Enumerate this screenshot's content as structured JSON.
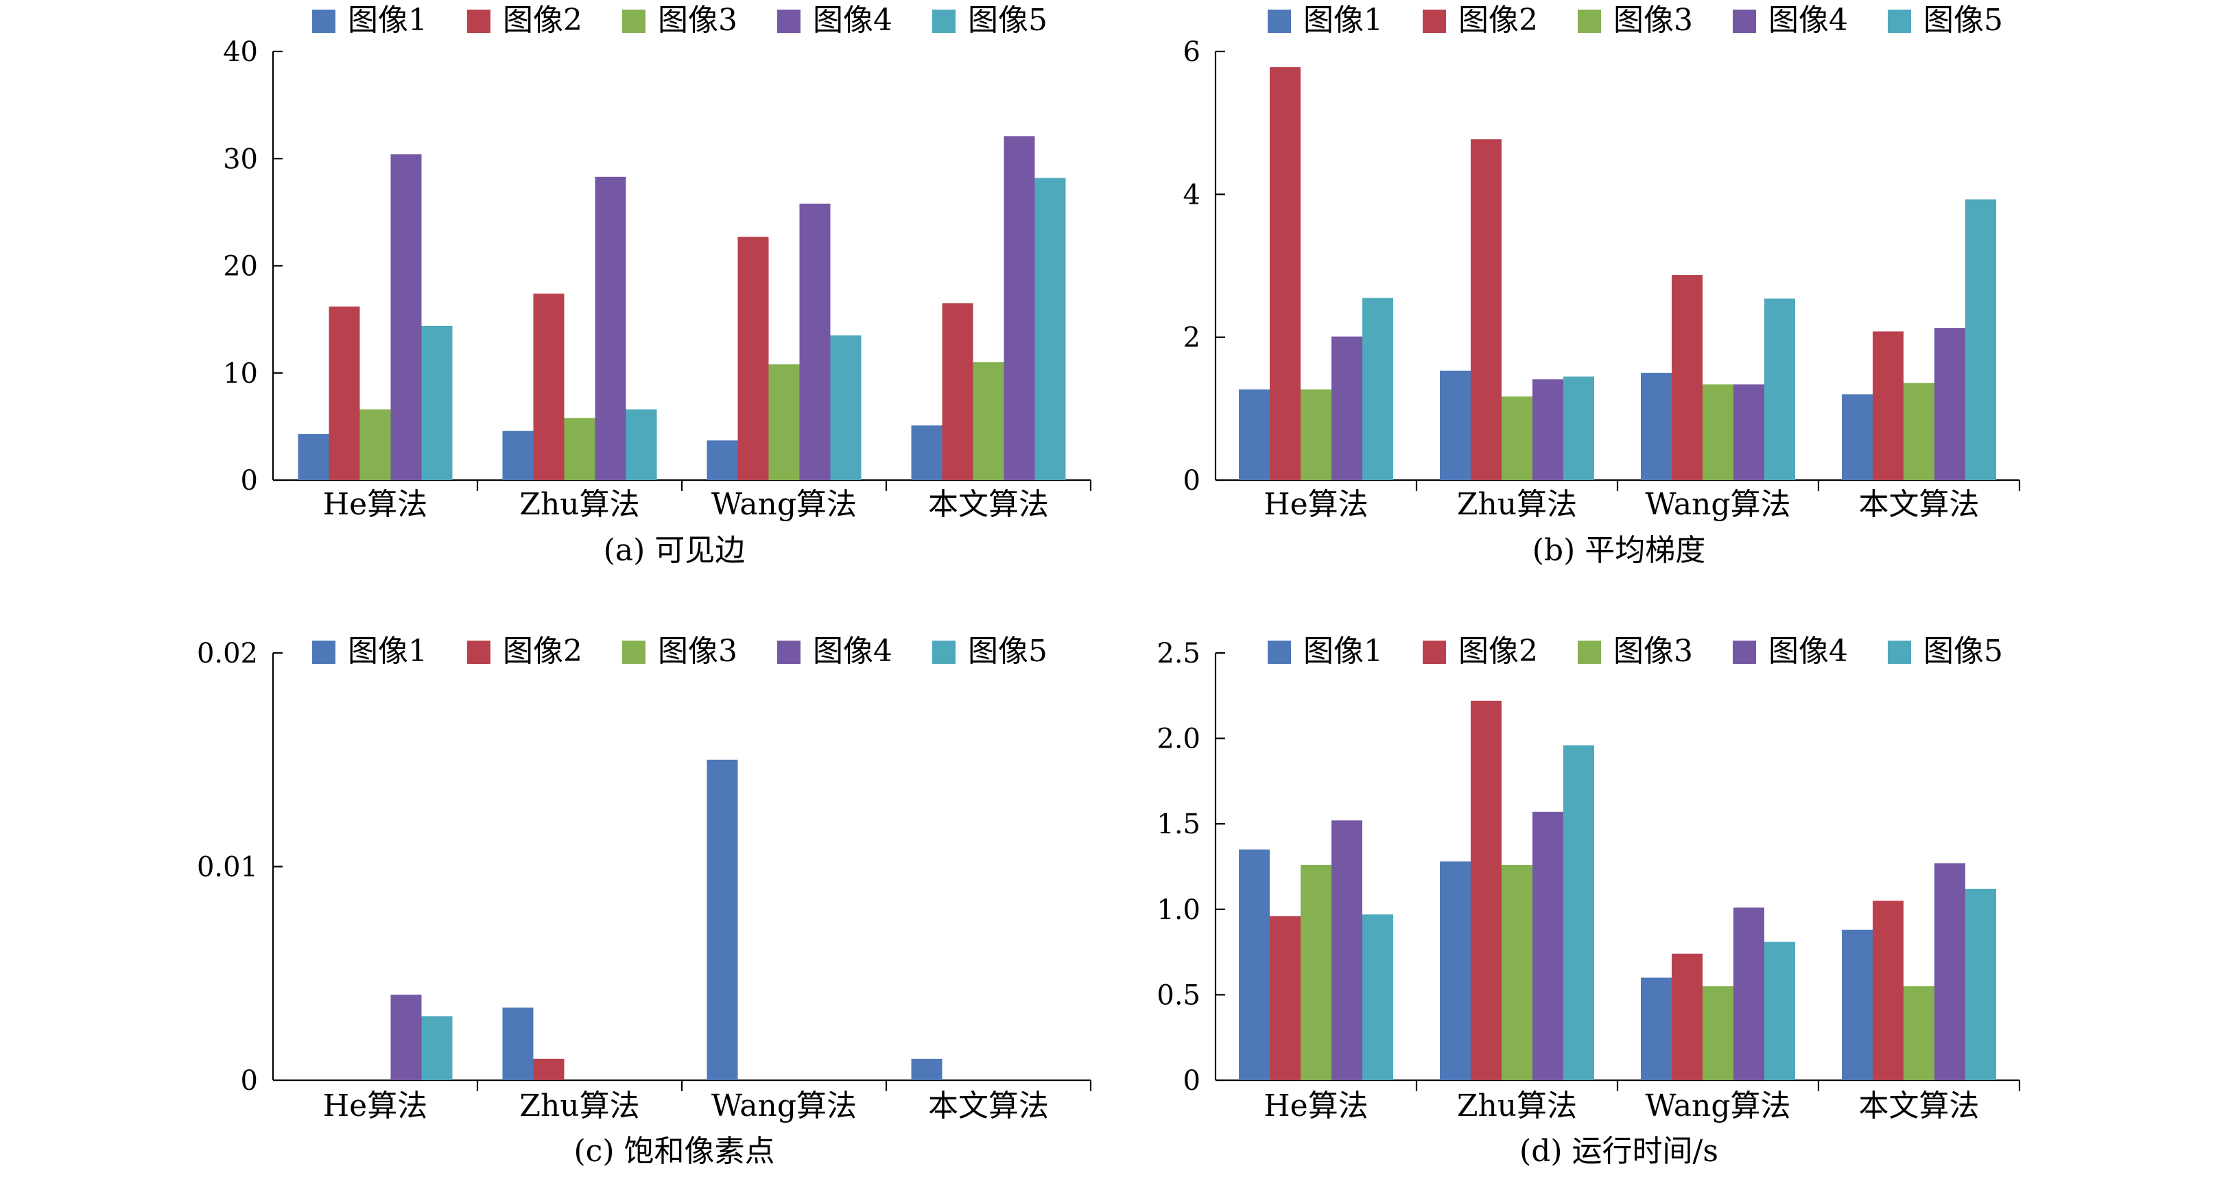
{
  "colors": {
    "series": [
      "#4f78b8",
      "#b8414d",
      "#86b150",
      "#7558a3",
      "#4fa9bd"
    ]
  },
  "chart_data": [
    {
      "type": "bar",
      "caption": "(a) 可见边",
      "categories": [
        "He算法",
        "Zhu算法",
        "Wang算法",
        "本文算法"
      ],
      "series": [
        {
          "name": "图像1",
          "values": [
            4.3,
            4.6,
            3.7,
            5.1
          ]
        },
        {
          "name": "图像2",
          "values": [
            16.2,
            17.4,
            22.7,
            16.5
          ]
        },
        {
          "name": "图像3",
          "values": [
            6.6,
            5.8,
            10.8,
            11.0
          ]
        },
        {
          "name": "图像4",
          "values": [
            30.4,
            28.3,
            25.8,
            32.1
          ]
        },
        {
          "name": "图像5",
          "values": [
            14.4,
            6.6,
            13.5,
            28.2
          ]
        }
      ],
      "ylim": [
        0,
        40
      ],
      "yticks": [
        0,
        10,
        20,
        30,
        40
      ],
      "ytick_labels": [
        "0",
        "10",
        "20",
        "30",
        "40"
      ],
      "legend": "top"
    },
    {
      "type": "bar",
      "caption": "(b) 平均梯度",
      "categories": [
        "He算法",
        "Zhu算法",
        "Wang算法",
        "本文算法"
      ],
      "series": [
        {
          "name": "图像1",
          "values": [
            1.27,
            1.53,
            1.5,
            1.2
          ]
        },
        {
          "name": "图像2",
          "values": [
            5.78,
            4.77,
            2.87,
            2.08
          ]
        },
        {
          "name": "图像3",
          "values": [
            1.27,
            1.17,
            1.34,
            1.36
          ]
        },
        {
          "name": "图像4",
          "values": [
            2.01,
            1.41,
            1.34,
            2.13
          ]
        },
        {
          "name": "图像5",
          "values": [
            2.55,
            1.45,
            2.54,
            3.93
          ]
        }
      ],
      "ylim": [
        0,
        6
      ],
      "yticks": [
        0,
        2,
        4,
        6
      ],
      "ytick_labels": [
        "0",
        "2",
        "4",
        "6"
      ],
      "legend": "top"
    },
    {
      "type": "bar",
      "caption": "(c) 饱和像素点",
      "categories": [
        "He算法",
        "Zhu算法",
        "Wang算法",
        "本文算法"
      ],
      "series": [
        {
          "name": "图像1",
          "values": [
            0,
            0.0034,
            0.015,
            0.001
          ]
        },
        {
          "name": "图像2",
          "values": [
            0,
            0.001,
            0,
            0
          ]
        },
        {
          "name": "图像3",
          "values": [
            0,
            0,
            0,
            0
          ]
        },
        {
          "name": "图像4",
          "values": [
            0.004,
            0,
            0,
            0
          ]
        },
        {
          "name": "图像5",
          "values": [
            0.003,
            0,
            0,
            0
          ]
        }
      ],
      "ylim": [
        0,
        0.02
      ],
      "yticks": [
        0,
        0.01,
        0.02
      ],
      "ytick_labels": [
        "0",
        "0.01",
        "0.02"
      ],
      "legend": "top"
    },
    {
      "type": "bar",
      "caption": "(d) 运行时间/s",
      "categories": [
        "He算法",
        "Zhu算法",
        "Wang算法",
        "本文算法"
      ],
      "series": [
        {
          "name": "图像1",
          "values": [
            1.35,
            1.28,
            0.6,
            0.88
          ]
        },
        {
          "name": "图像2",
          "values": [
            0.96,
            2.22,
            0.74,
            1.05
          ]
        },
        {
          "name": "图像3",
          "values": [
            1.26,
            1.26,
            0.55,
            0.55
          ]
        },
        {
          "name": "图像4",
          "values": [
            1.52,
            1.57,
            1.01,
            1.27
          ]
        },
        {
          "name": "图像5",
          "values": [
            0.97,
            1.96,
            0.81,
            1.12
          ]
        }
      ],
      "ylim": [
        0,
        2.5
      ],
      "yticks": [
        0,
        0.5,
        1.0,
        1.5,
        2.0,
        2.5
      ],
      "ytick_labels": [
        "0",
        "0.5",
        "1.0",
        "1.5",
        "2.0",
        "2.5"
      ],
      "legend": "top"
    }
  ]
}
